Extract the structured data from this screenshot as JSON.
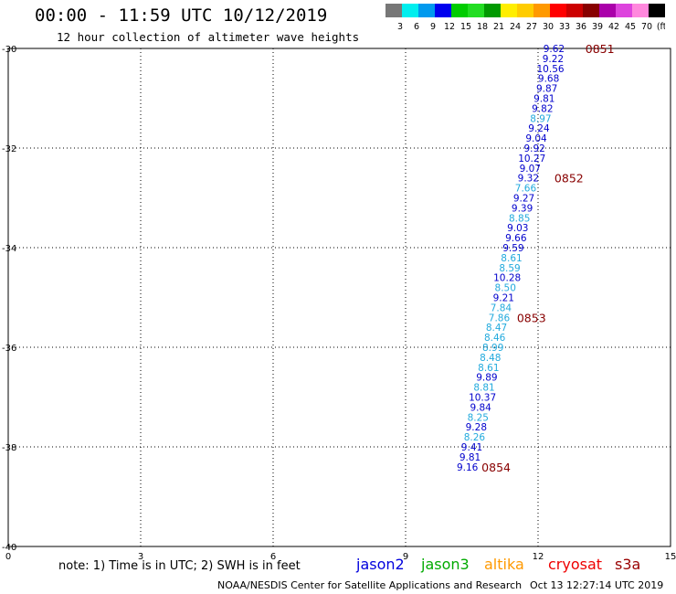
{
  "header": {
    "title": "00:00 - 11:59 UTC 10/12/2019",
    "subtitle": "12 hour collection of altimeter wave heights"
  },
  "scale": {
    "labels": [
      "3",
      "6",
      "9",
      "12",
      "15",
      "18",
      "21",
      "24",
      "27",
      "30",
      "33",
      "36",
      "39",
      "42",
      "45",
      "70",
      "(ft)"
    ],
    "colors": [
      "#777777",
      "#00eeee",
      "#0099ee",
      "#0000ee",
      "#00cc00",
      "#22dd22",
      "#009900",
      "#ffee00",
      "#ffcc00",
      "#ff9900",
      "#ff0000",
      "#cc0000",
      "#880000",
      "#aa00aa",
      "#dd44dd",
      "#ff88dd",
      "#000000"
    ]
  },
  "map": {
    "x_ticks": [
      "0",
      "3",
      "6",
      "9",
      "12",
      "15"
    ],
    "y_ticks": [
      "-30",
      "-32",
      "-34",
      "-36",
      "-38",
      "-40"
    ],
    "x_range": [
      0,
      15
    ],
    "y_range": [
      -30,
      -40
    ],
    "track_color_dark": "#0000cc",
    "track_color_light": "#22aadd",
    "time_color": "#880000",
    "observations": [
      {
        "lon": 12.36,
        "lat": -30.0,
        "v": "9.62",
        "c": "d"
      },
      {
        "lon": 12.34,
        "lat": -30.2,
        "v": "9.22",
        "c": "d"
      },
      {
        "lon": 12.28,
        "lat": -30.4,
        "v": "10.56",
        "c": "d"
      },
      {
        "lon": 12.24,
        "lat": -30.6,
        "v": "9.68",
        "c": "d"
      },
      {
        "lon": 12.2,
        "lat": -30.8,
        "v": "9.87",
        "c": "d"
      },
      {
        "lon": 12.14,
        "lat": -31.0,
        "v": "9.81",
        "c": "d"
      },
      {
        "lon": 12.1,
        "lat": -31.2,
        "v": "9.82",
        "c": "d"
      },
      {
        "lon": 12.06,
        "lat": -31.4,
        "v": "8.97",
        "c": "l"
      },
      {
        "lon": 12.02,
        "lat": -31.6,
        "v": "9.24",
        "c": "d"
      },
      {
        "lon": 11.96,
        "lat": -31.8,
        "v": "9.04",
        "c": "d"
      },
      {
        "lon": 11.92,
        "lat": -32.0,
        "v": "9.92",
        "c": "d"
      },
      {
        "lon": 11.86,
        "lat": -32.2,
        "v": "10.27",
        "c": "d"
      },
      {
        "lon": 11.82,
        "lat": -32.4,
        "v": "9.07",
        "c": "d"
      },
      {
        "lon": 11.78,
        "lat": -32.6,
        "v": "9.32",
        "c": "d"
      },
      {
        "lon": 11.72,
        "lat": -32.8,
        "v": "7.66",
        "c": "l"
      },
      {
        "lon": 11.68,
        "lat": -33.0,
        "v": "9.27",
        "c": "d"
      },
      {
        "lon": 11.64,
        "lat": -33.2,
        "v": "9.39",
        "c": "d"
      },
      {
        "lon": 11.58,
        "lat": -33.4,
        "v": "8.85",
        "c": "l"
      },
      {
        "lon": 11.54,
        "lat": -33.6,
        "v": "9.03",
        "c": "d"
      },
      {
        "lon": 11.5,
        "lat": -33.8,
        "v": "9.66",
        "c": "d"
      },
      {
        "lon": 11.44,
        "lat": -34.0,
        "v": "9.59",
        "c": "d"
      },
      {
        "lon": 11.4,
        "lat": -34.2,
        "v": "8.61",
        "c": "l"
      },
      {
        "lon": 11.36,
        "lat": -34.4,
        "v": "8.59",
        "c": "l"
      },
      {
        "lon": 11.3,
        "lat": -34.6,
        "v": "10.28",
        "c": "d"
      },
      {
        "lon": 11.26,
        "lat": -34.8,
        "v": "8.50",
        "c": "l"
      },
      {
        "lon": 11.22,
        "lat": -35.0,
        "v": "9.21",
        "c": "d"
      },
      {
        "lon": 11.16,
        "lat": -35.2,
        "v": "7.84",
        "c": "l"
      },
      {
        "lon": 11.12,
        "lat": -35.4,
        "v": "7.86",
        "c": "l"
      },
      {
        "lon": 11.06,
        "lat": -35.6,
        "v": "8.47",
        "c": "l"
      },
      {
        "lon": 11.02,
        "lat": -35.8,
        "v": "8.46",
        "c": "l"
      },
      {
        "lon": 10.98,
        "lat": -36.0,
        "v": "8.99",
        "c": "l"
      },
      {
        "lon": 10.92,
        "lat": -36.2,
        "v": "8.48",
        "c": "l"
      },
      {
        "lon": 10.88,
        "lat": -36.4,
        "v": "8.61",
        "c": "l"
      },
      {
        "lon": 10.84,
        "lat": -36.6,
        "v": "9.89",
        "c": "d"
      },
      {
        "lon": 10.78,
        "lat": -36.8,
        "v": "8.81",
        "c": "l"
      },
      {
        "lon": 10.74,
        "lat": -37.0,
        "v": "10.37",
        "c": "d"
      },
      {
        "lon": 10.7,
        "lat": -37.2,
        "v": "9.84",
        "c": "d"
      },
      {
        "lon": 10.64,
        "lat": -37.4,
        "v": "8.25",
        "c": "l"
      },
      {
        "lon": 10.6,
        "lat": -37.6,
        "v": "9.28",
        "c": "d"
      },
      {
        "lon": 10.56,
        "lat": -37.8,
        "v": "8.26",
        "c": "l"
      },
      {
        "lon": 10.5,
        "lat": -38.0,
        "v": "9.41",
        "c": "d"
      },
      {
        "lon": 10.46,
        "lat": -38.2,
        "v": "9.81",
        "c": "d"
      },
      {
        "lon": 10.4,
        "lat": -38.4,
        "v": "9.16",
        "c": "d"
      }
    ],
    "time_labels": [
      {
        "lon": 13.4,
        "lat": -30.0,
        "t": "0851"
      },
      {
        "lon": 12.7,
        "lat": -32.6,
        "t": "0852"
      },
      {
        "lon": 11.85,
        "lat": -35.4,
        "t": "0853"
      },
      {
        "lon": 11.05,
        "lat": -38.4,
        "t": "0854"
      }
    ]
  },
  "footer": {
    "note": "note: 1) Time is in UTC; 2) SWH is in feet",
    "satellites": [
      {
        "name": "jason2",
        "color": "#0000dd"
      },
      {
        "name": "jason3",
        "color": "#00aa00"
      },
      {
        "name": "altika",
        "color": "#ff9900"
      },
      {
        "name": "cryosat",
        "color": "#ee0000"
      },
      {
        "name": "s3a",
        "color": "#990000"
      }
    ],
    "credit": "NOAA/NESDIS Center for Satellite Applications and Research",
    "timestamp": "Oct 13 12:27:14 UTC 2019"
  }
}
